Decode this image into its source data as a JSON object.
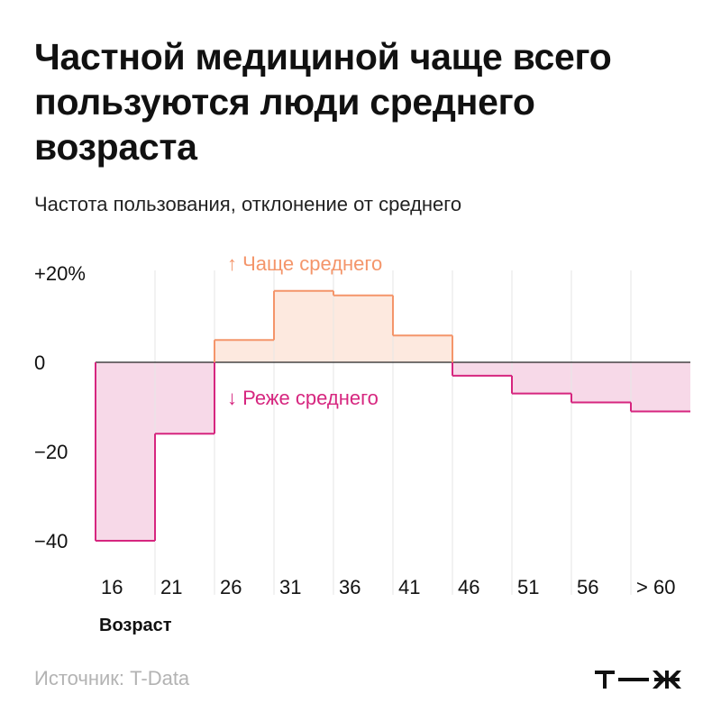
{
  "title": "Частной медициной чаще всего пользуются люди среднего возраста",
  "subtitle": "Частота пользования, отклонение от среднего",
  "source": "Источник: T-Data",
  "brand": "т—ж",
  "colors": {
    "positive_line": "#f4956a",
    "positive_fill": "#fde9df",
    "negative_line": "#d6267f",
    "negative_fill": "#f7d9e8",
    "grid": "#e6e6e6",
    "axis": "#222222"
  },
  "chart_data": {
    "type": "step-area",
    "categories": [
      "16",
      "21",
      "26",
      "31",
      "36",
      "41",
      "46",
      "51",
      "56",
      "> 60"
    ],
    "values": [
      -40,
      -16,
      5,
      16,
      15,
      6,
      -3,
      -7,
      -9,
      -11
    ],
    "ylim": [
      -45,
      20
    ],
    "yticks": [
      {
        "value": 20,
        "label": "+20%"
      },
      {
        "value": 0,
        "label": "0"
      },
      {
        "value": -20,
        "label": "−20"
      },
      {
        "value": -40,
        "label": "−40"
      }
    ],
    "xlabel": "Возраст",
    "annotations": {
      "above": "↑ Чаще среднего",
      "below": "↓ Реже среднего"
    }
  }
}
